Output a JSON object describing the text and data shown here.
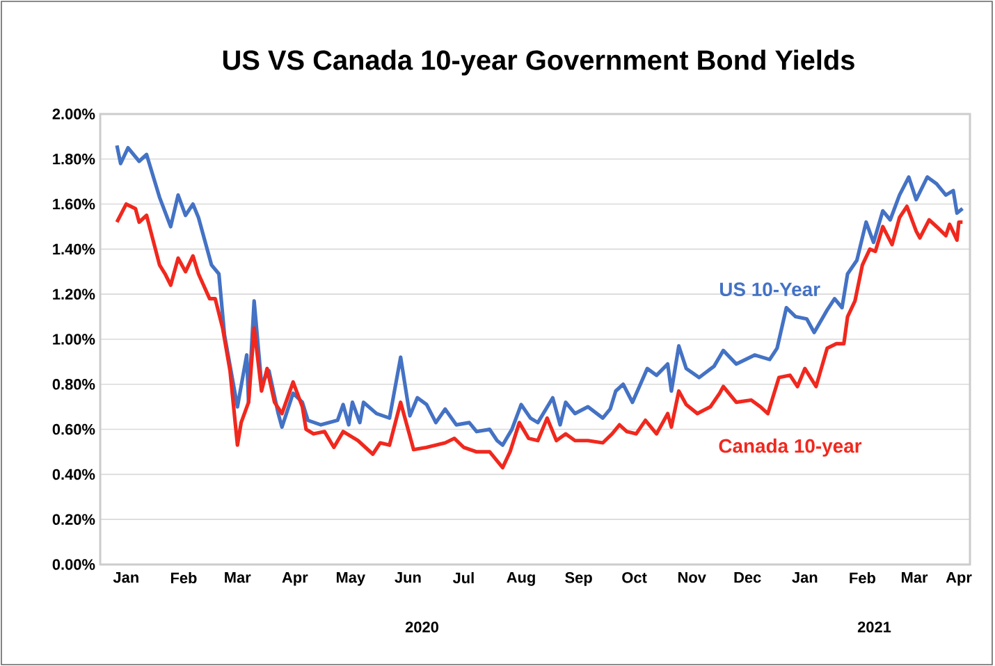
{
  "chart_data": {
    "type": "line",
    "title": "US VS Canada 10-year Government Bond Yields",
    "xlim": [
      "2020-01-01",
      "2021-04-14"
    ],
    "xticks": [
      {
        "value": "2020-01-15",
        "label": "Jan"
      },
      {
        "value": "2020-02-15",
        "label": "Feb"
      },
      {
        "value": "2020-03-15",
        "label": "Mar"
      },
      {
        "value": "2020-04-15",
        "label": "Apr"
      },
      {
        "value": "2020-05-15",
        "label": "May"
      },
      {
        "value": "2020-06-15",
        "label": "Jun"
      },
      {
        "value": "2020-07-15",
        "label": "Jul"
      },
      {
        "value": "2020-08-15",
        "label": "Aug"
      },
      {
        "value": "2020-09-15",
        "label": "Sep"
      },
      {
        "value": "2020-10-15",
        "label": "Oct"
      },
      {
        "value": "2020-11-15",
        "label": "Nov"
      },
      {
        "value": "2020-12-15",
        "label": "Dec"
      },
      {
        "value": "2021-01-15",
        "label": "Jan"
      },
      {
        "value": "2021-02-15",
        "label": "Feb"
      },
      {
        "value": "2021-03-15",
        "label": "Mar"
      },
      {
        "value": "2021-04-08",
        "label": "Apr"
      }
    ],
    "ylim": [
      0,
      2
    ],
    "yticks": [
      {
        "value": 0,
        "label": "0.00%"
      },
      {
        "value": 0.2,
        "label": "0.20%"
      },
      {
        "value": 0.4,
        "label": "0.40%"
      },
      {
        "value": 0.6,
        "label": "0.60%"
      },
      {
        "value": 0.8,
        "label": "0.80%"
      },
      {
        "value": 1.0,
        "label": "1.00%"
      },
      {
        "value": 1.2,
        "label": "1.20%"
      },
      {
        "value": 1.4,
        "label": "1.40%"
      },
      {
        "value": 1.6,
        "label": "1.60%"
      },
      {
        "value": 1.8,
        "label": "1.80%"
      },
      {
        "value": 2.0,
        "label": "2.00%"
      }
    ],
    "grid": "y",
    "legend": false,
    "marker": "none",
    "line_style": "solid",
    "series": [
      {
        "name": "US 10-Year",
        "color": "#4472c4",
        "x": [
          "2020-01-10",
          "2020-01-12",
          "2020-01-16",
          "2020-01-22",
          "2020-01-26",
          "2020-02-02",
          "2020-02-08",
          "2020-02-12",
          "2020-02-16",
          "2020-02-20",
          "2020-02-23",
          "2020-03-01",
          "2020-03-05",
          "2020-03-08",
          "2020-03-15",
          "2020-03-20",
          "2020-03-21",
          "2020-03-24",
          "2020-03-28",
          "2020-04-01",
          "2020-04-06",
          "2020-04-08",
          "2020-04-14",
          "2020-04-19",
          "2020-04-22",
          "2020-04-29",
          "2020-05-08",
          "2020-05-11",
          "2020-05-14",
          "2020-05-16",
          "2020-05-20",
          "2020-05-22",
          "2020-05-29",
          "2020-06-05",
          "2020-06-11",
          "2020-06-16",
          "2020-06-20",
          "2020-06-25",
          "2020-06-30",
          "2020-07-05",
          "2020-07-11",
          "2020-07-18",
          "2020-07-22",
          "2020-07-29",
          "2020-08-02",
          "2020-08-05",
          "2020-08-10",
          "2020-08-15",
          "2020-08-20",
          "2020-08-24",
          "2020-09-01",
          "2020-09-05",
          "2020-09-08",
          "2020-09-13",
          "2020-09-20",
          "2020-09-28",
          "2020-10-02",
          "2020-10-05",
          "2020-10-09",
          "2020-10-14",
          "2020-10-22",
          "2020-10-27",
          "2020-11-02",
          "2020-11-04",
          "2020-11-08",
          "2020-11-12",
          "2020-11-19",
          "2020-11-27",
          "2020-12-02",
          "2020-12-09",
          "2020-12-19",
          "2020-12-27",
          "2020-12-31",
          "2021-01-05",
          "2021-01-10",
          "2021-01-16",
          "2021-01-20",
          "2021-01-27",
          "2021-01-31",
          "2021-02-04",
          "2021-02-07",
          "2021-02-12",
          "2021-02-17",
          "2021-02-21",
          "2021-02-26",
          "2021-03-02",
          "2021-03-07",
          "2021-03-12",
          "2021-03-16",
          "2021-03-22",
          "2021-03-27",
          "2021-04-01",
          "2021-04-05",
          "2021-04-07",
          "2021-04-10"
        ],
        "values": [
          1.86,
          1.78,
          1.85,
          1.79,
          1.82,
          1.63,
          1.5,
          1.64,
          1.55,
          1.6,
          1.54,
          1.33,
          1.29,
          1.02,
          0.7,
          0.93,
          0.72,
          1.17,
          0.8,
          0.86,
          0.67,
          0.61,
          0.76,
          0.72,
          0.64,
          0.62,
          0.64,
          0.71,
          0.62,
          0.72,
          0.63,
          0.72,
          0.67,
          0.65,
          0.92,
          0.66,
          0.74,
          0.71,
          0.63,
          0.69,
          0.62,
          0.63,
          0.59,
          0.6,
          0.55,
          0.53,
          0.6,
          0.71,
          0.65,
          0.63,
          0.74,
          0.62,
          0.72,
          0.67,
          0.7,
          0.65,
          0.69,
          0.77,
          0.8,
          0.72,
          0.87,
          0.84,
          0.89,
          0.77,
          0.97,
          0.87,
          0.83,
          0.88,
          0.95,
          0.89,
          0.93,
          0.91,
          0.96,
          1.14,
          1.1,
          1.09,
          1.03,
          1.13,
          1.18,
          1.14,
          1.29,
          1.35,
          1.52,
          1.43,
          1.57,
          1.53,
          1.64,
          1.72,
          1.62,
          1.72,
          1.69,
          1.64,
          1.66,
          1.56,
          1.58
        ]
      },
      {
        "name": "Canada 10-year",
        "color": "#f0281e",
        "x": [
          "2020-01-10",
          "2020-01-15",
          "2020-01-20",
          "2020-01-22",
          "2020-01-26",
          "2020-02-02",
          "2020-02-05",
          "2020-02-08",
          "2020-02-12",
          "2020-02-16",
          "2020-02-20",
          "2020-02-23",
          "2020-02-29",
          "2020-03-03",
          "2020-03-07",
          "2020-03-11",
          "2020-03-15",
          "2020-03-17",
          "2020-03-21",
          "2020-03-24",
          "2020-03-28",
          "2020-03-31",
          "2020-04-04",
          "2020-04-08",
          "2020-04-14",
          "2020-04-19",
          "2020-04-21",
          "2020-04-25",
          "2020-05-01",
          "2020-05-06",
          "2020-05-11",
          "2020-05-19",
          "2020-05-27",
          "2020-05-31",
          "2020-06-05",
          "2020-06-11",
          "2020-06-18",
          "2020-06-25",
          "2020-07-05",
          "2020-07-10",
          "2020-07-15",
          "2020-07-22",
          "2020-07-29",
          "2020-08-02",
          "2020-08-05",
          "2020-08-09",
          "2020-08-14",
          "2020-08-19",
          "2020-08-24",
          "2020-08-29",
          "2020-09-03",
          "2020-09-08",
          "2020-09-13",
          "2020-09-20",
          "2020-09-28",
          "2020-10-03",
          "2020-10-07",
          "2020-10-11",
          "2020-10-16",
          "2020-10-21",
          "2020-10-27",
          "2020-11-02",
          "2020-11-04",
          "2020-11-08",
          "2020-11-12",
          "2020-11-18",
          "2020-11-25",
          "2020-11-30",
          "2020-12-02",
          "2020-12-09",
          "2020-12-17",
          "2020-12-22",
          "2020-12-26",
          "2021-01-01",
          "2021-01-07",
          "2021-01-11",
          "2021-01-15",
          "2021-01-21",
          "2021-01-27",
          "2021-02-01",
          "2021-02-05",
          "2021-02-07",
          "2021-02-11",
          "2021-02-15",
          "2021-02-19",
          "2021-02-22",
          "2021-02-26",
          "2021-03-03",
          "2021-03-07",
          "2021-03-11",
          "2021-03-16",
          "2021-03-18",
          "2021-03-23",
          "2021-03-27",
          "2021-04-01",
          "2021-04-03",
          "2021-04-07",
          "2021-04-08",
          "2021-04-10"
        ],
        "values": [
          1.52,
          1.6,
          1.58,
          1.52,
          1.55,
          1.33,
          1.29,
          1.24,
          1.36,
          1.3,
          1.37,
          1.29,
          1.18,
          1.18,
          1.05,
          0.86,
          0.53,
          0.63,
          0.72,
          1.05,
          0.77,
          0.87,
          0.72,
          0.67,
          0.81,
          0.7,
          0.6,
          0.58,
          0.59,
          0.52,
          0.59,
          0.55,
          0.49,
          0.54,
          0.53,
          0.72,
          0.51,
          0.52,
          0.54,
          0.56,
          0.52,
          0.5,
          0.5,
          0.46,
          0.43,
          0.5,
          0.63,
          0.56,
          0.55,
          0.65,
          0.55,
          0.58,
          0.55,
          0.55,
          0.54,
          0.58,
          0.62,
          0.59,
          0.58,
          0.64,
          0.58,
          0.67,
          0.61,
          0.77,
          0.71,
          0.67,
          0.7,
          0.76,
          0.79,
          0.72,
          0.73,
          0.7,
          0.67,
          0.83,
          0.84,
          0.79,
          0.87,
          0.79,
          0.96,
          0.98,
          0.98,
          1.1,
          1.17,
          1.33,
          1.4,
          1.39,
          1.5,
          1.42,
          1.54,
          1.59,
          1.48,
          1.45,
          1.53,
          1.5,
          1.46,
          1.51,
          1.44,
          1.52,
          1.52
        ]
      }
    ],
    "annotations": [
      "2020",
      "2021"
    ]
  }
}
